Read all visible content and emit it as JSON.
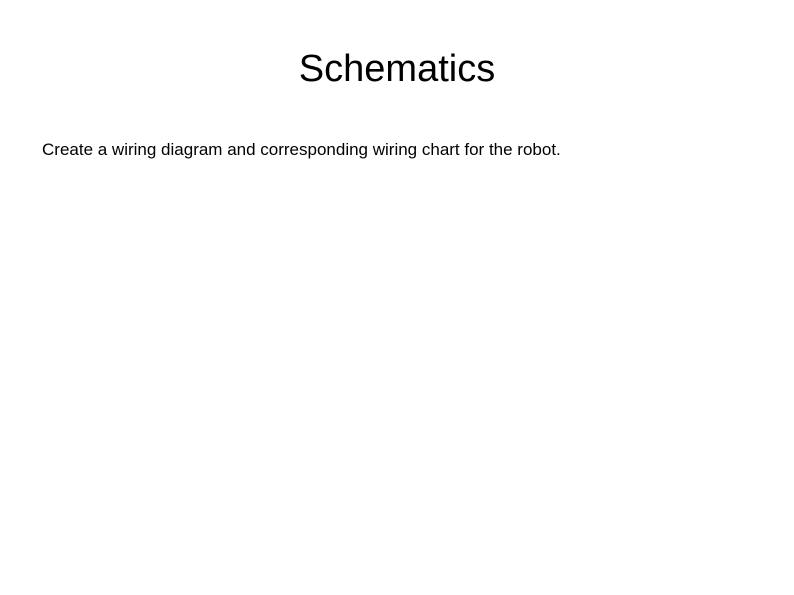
{
  "slide": {
    "title": "Schematics",
    "body": "Create a wiring diagram and corresponding wiring chart for the robot.",
    "title_fontsize": 38,
    "body_fontsize": 17,
    "text_color": "#000000",
    "background_color": "#ffffff",
    "font_family": "Arial, Helvetica, sans-serif"
  }
}
